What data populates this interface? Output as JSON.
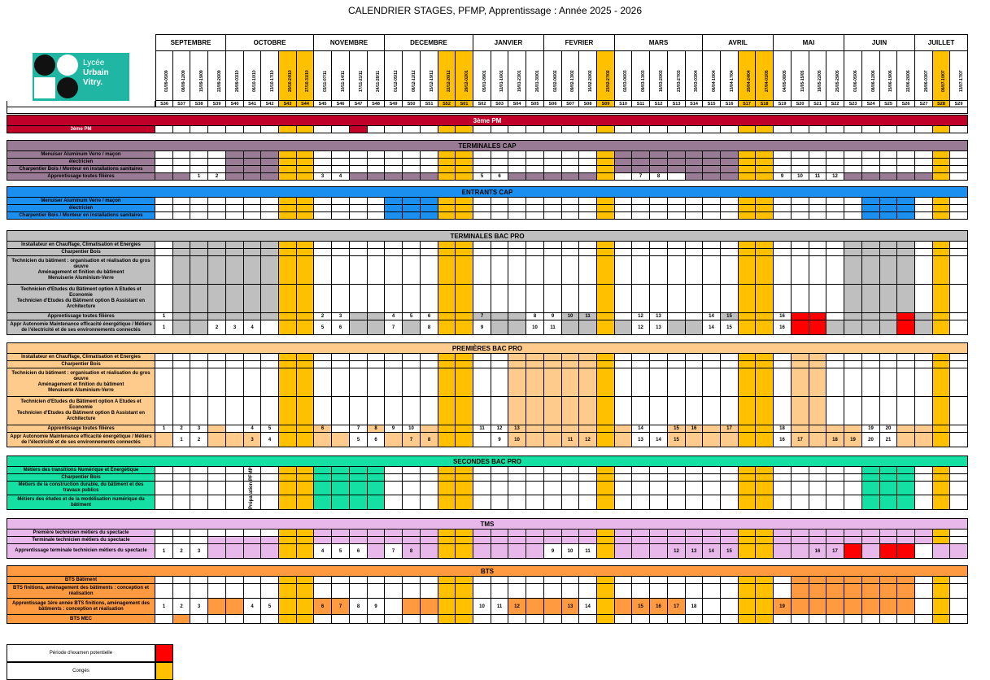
{
  "title": "CALENDRIER STAGES, PFMP, Apprentissage : Année 2025 - 2026",
  "logo": {
    "line1": "Lycée",
    "line2": "Urbain",
    "line3": "Vitry."
  },
  "months": [
    {
      "label": "SEPTEMBRE",
      "span": 4
    },
    {
      "label": "OCTOBRE",
      "span": 5
    },
    {
      "label": "NOVEMBRE",
      "span": 4
    },
    {
      "label": "DECEMBRE",
      "span": 5
    },
    {
      "label": "JANVIER",
      "span": 4
    },
    {
      "label": "FEVRIER",
      "span": 4
    },
    {
      "label": "MARS",
      "span": 5
    },
    {
      "label": "AVRIL",
      "span": 4
    },
    {
      "label": "MAI",
      "span": 4
    },
    {
      "label": "JUIN",
      "span": 4
    },
    {
      "label": "JUILLET",
      "span": 3
    }
  ],
  "weeks": [
    "S36",
    "S37",
    "S38",
    "S39",
    "S40",
    "S41",
    "S42",
    "S43",
    "S44",
    "S45",
    "S46",
    "S47",
    "S48",
    "S49",
    "S50",
    "S51",
    "S52",
    "S01",
    "S02",
    "S03",
    "S04",
    "S05",
    "S06",
    "S07",
    "S08",
    "S09",
    "S10",
    "S11",
    "S12",
    "S13",
    "S14",
    "S15",
    "S16",
    "S17",
    "S18",
    "S19",
    "S20",
    "S21",
    "S22",
    "S23",
    "S24",
    "S25",
    "S26",
    "S27",
    "S28",
    "S29"
  ],
  "dates": [
    "01/09-05/09",
    "08/09-12/09",
    "15/09-19/09",
    "22/09-26/09",
    "29/09-03/10",
    "06/10-10/10",
    "13/10-17/10",
    "20/10-24/10",
    "27/10-31/10",
    "03/11-07/11",
    "10/11-14/11",
    "17/11-21/11",
    "24/11-28/11",
    "01/12-05/12",
    "08/12-12/12",
    "15/12-19/12",
    "22/12-26/12",
    "29/12-02/01",
    "05/01-09/01",
    "12/01-16/01",
    "19/01-23/01",
    "26/01-30/01",
    "02/02-06/02",
    "09/02-13/02",
    "16/02-20/02",
    "23/02-27/02",
    "02/03-06/03",
    "09/03-13/03",
    "16/03-20/03",
    "23/03-27/03",
    "30/03-03/04",
    "06/04-10/04",
    "13/04-17/04",
    "20/04-24/04",
    "27/04-01/05",
    "04/05-08/05",
    "11/05-15/05",
    "18/05-22/05",
    "25/05-29/05",
    "01/06-05/06",
    "08/06-12/06",
    "15/06-19/06",
    "22/06-26/06",
    "29/06-03/07",
    "06/07-10/07",
    "13/07-17/07"
  ],
  "colors": {
    "vacation": "#ffc000",
    "exam": "#ff0000",
    "red_pm": "#c00028",
    "cap": "#9a7b96",
    "entrants": "#1a8ff0",
    "terminales": "#58d2f7",
    "premieres": "#ffcb8c",
    "secondes": "#14e0a4",
    "tms": "#e0a1e2",
    "tms_head": "#e8b8ea",
    "bts": "#ff9a40",
    "grey_head": "#bfbfbf"
  },
  "sections": [
    {
      "title": "3ème PM",
      "color": "#c00028",
      "rows": [
        {
          "label": "3ème PM",
          "h": 9,
          "fill": [],
          "nums": {},
          "red": [
            11
          ]
        }
      ]
    },
    {
      "title": "TERMINALES CAP",
      "color": "#9a7b96",
      "rows": [
        {
          "label": "Menuiser Aluminum Verre / maçon",
          "h": 9,
          "fill": [
            4,
            5,
            6,
            26,
            27,
            28,
            29,
            30,
            31,
            32
          ],
          "nums": {}
        },
        {
          "label": "électricien",
          "h": 9,
          "fill": [
            4,
            5,
            6,
            26,
            27,
            28,
            29,
            30,
            31,
            32
          ],
          "nums": {}
        },
        {
          "label": "Charpentier Bois / Monteur en installations sanitaires",
          "h": 9,
          "fill": [
            4,
            5,
            6,
            26,
            27,
            28,
            29,
            30,
            31,
            32
          ],
          "nums": {}
        },
        {
          "label": "Apprentissage toutes filières",
          "h": 9,
          "fill": [
            0,
            1,
            4,
            5,
            6,
            11,
            12,
            13,
            14,
            15,
            20,
            21,
            22,
            23,
            24,
            25,
            30,
            31,
            32,
            39,
            40,
            41,
            42,
            43
          ],
          "nums": {
            "2": "1",
            "3": "2",
            "9": "3",
            "10": "4",
            "18": "5",
            "19": "6",
            "27": "7",
            "28": "8",
            "35": "9",
            "36": "10",
            "37": "11",
            "38": "12"
          }
        }
      ]
    },
    {
      "title": "ENTRANTS CAP",
      "color": "#1a8ff0",
      "rows": [
        {
          "label": "Menuiser Aluminum Verre / maçon",
          "h": 9,
          "fill": [
            13,
            14,
            15,
            40,
            41,
            42
          ],
          "nums": {}
        },
        {
          "label": "électricien",
          "h": 9,
          "fill": [
            13,
            14,
            15,
            40,
            41,
            42
          ],
          "nums": {}
        },
        {
          "label": "Charpentier Bois / Monteur en installations sanitaires",
          "h": 9,
          "fill": [
            13,
            14,
            15,
            40,
            41,
            42
          ],
          "nums": {}
        }
      ]
    },
    {
      "title": "TERMINALES BAC PRO",
      "color": "#bfbfbf",
      "rows": [
        {
          "label": "Installateur en Chauffage, Climatisation et Energies",
          "h": 9,
          "fill": [
            1,
            2,
            3,
            4,
            5,
            6,
            39,
            40,
            41,
            42
          ],
          "nums": {}
        },
        {
          "label": "Charpentier Bois",
          "h": 9,
          "fill": [
            1,
            2,
            3,
            4,
            5,
            6,
            39,
            40,
            41,
            42
          ],
          "nums": {}
        },
        {
          "label": "Technicien du bâtiment : organisation et réalisation du gros œuvre\nAménagement et finition du bâtiment\nMenuiserie Aluminium-Verre",
          "h": 35,
          "fill": [
            1,
            2,
            3,
            4,
            5,
            6,
            39,
            40,
            41,
            42
          ],
          "nums": {}
        },
        {
          "label": "Technicien d'Etudes du Bâtiment option A Etudes et Economie\nTechnicien d'Etudes du Bâtiment option B Assistant en Architecture",
          "h": 35,
          "fill": [
            1,
            2,
            3,
            4,
            5,
            6,
            39,
            40,
            41,
            42
          ],
          "nums": {}
        },
        {
          "label": "Apprentissage toutes filières",
          "h": 9,
          "fill": [
            1,
            2,
            3,
            4,
            5,
            6,
            11,
            12,
            17,
            18,
            19,
            20,
            23,
            24,
            25,
            32,
            33,
            34,
            39,
            40,
            41,
            43
          ],
          "nums": {
            "0": "1",
            "9": "2",
            "10": "3",
            "13": "4",
            "14": "5",
            "15": "6",
            "18": "7",
            "21": "8",
            "22": "9",
            "23": "10",
            "24": "11",
            "27": "12",
            "28": "13",
            "31": "14",
            "32": "15",
            "35": "16"
          },
          "red": [
            36,
            37,
            42
          ]
        },
        {
          "label": "Appr Autonomie Maintenance efficacité énergétique / Métiers de l'électricité et de ses environnements connectés",
          "h": 18,
          "fill": [
            1,
            2,
            7,
            8,
            11,
            12,
            14,
            16,
            17,
            19,
            20,
            23,
            24,
            25,
            26,
            29,
            30,
            34,
            38,
            39,
            40,
            41,
            43
          ],
          "nums": {
            "0": "1",
            "3": "2",
            "4": "3",
            "5": "4",
            "9": "5",
            "10": "6",
            "13": "7",
            "15": "8",
            "18": "9",
            "21": "10",
            "22": "11",
            "27": "12",
            "28": "13",
            "31": "14",
            "32": "15",
            "35": "16"
          },
          "red": [
            36,
            37,
            42
          ]
        }
      ]
    },
    {
      "title": "PREMIÈRES BAC PRO",
      "color": "#ffcb8c",
      "rows": [
        {
          "label": "Installateur en Chauffage, Climatisation et Energies",
          "h": 9,
          "fill": [
            20,
            21,
            22,
            23,
            24,
            36,
            37
          ],
          "nums": {}
        },
        {
          "label": "Charpentier Bois",
          "h": 9,
          "fill": [
            20,
            21,
            22,
            23,
            24,
            36,
            37
          ],
          "nums": {}
        },
        {
          "label": "Technicien du bâtiment : organisation et réalisation du gros œuvre\nAménagement et finition du bâtiment\nMenuiserie Aluminium-Verre",
          "h": 35,
          "fill": [
            20,
            21,
            22,
            23,
            24,
            36,
            37
          ],
          "nums": {}
        },
        {
          "label": "Technicien d'Etudes du Bâtiment option A Etudes et Economie\nTechnicien d'Etudes du Bâtiment option B Assistant en Architecture",
          "h": 35,
          "fill": [
            20,
            21,
            22,
            23,
            24,
            36,
            37
          ],
          "nums": {}
        },
        {
          "label": "Apprentissage toutes filières",
          "h": 9,
          "fill": [
            3,
            8,
            9,
            12,
            15,
            16,
            20,
            21,
            22,
            23,
            24,
            25,
            26,
            29,
            30,
            31,
            32,
            33,
            34,
            36,
            37,
            38,
            39,
            42,
            43
          ],
          "nums": {
            "0": "1",
            "1": "2",
            "2": "3",
            "5": "4",
            "6": "5",
            "9": "6",
            "11": "7",
            "12": "8",
            "13": "9",
            "14": "10",
            "18": "11",
            "19": "12",
            "20": "13",
            "27": "14",
            "29": "15",
            "30": "16",
            "32": "17",
            "35": "18",
            "40": "19",
            "41": "20"
          }
        },
        {
          "label": "Appr Autonomie Maintenance efficacité énergétique / Métiers de l'électricité et de ses environnements connectés",
          "h": 18,
          "fill": [
            0,
            3,
            4,
            5,
            8,
            9,
            10,
            13,
            14,
            15,
            16,
            17,
            20,
            21,
            22,
            23,
            24,
            25,
            26,
            29,
            30,
            31,
            32,
            33,
            34,
            36,
            37,
            38,
            39,
            42,
            43
          ],
          "nums": {
            "1": "1",
            "2": "2",
            "5": "3",
            "6": "4",
            "11": "5",
            "12": "6",
            "14": "7",
            "15": "8",
            "19": "9",
            "20": "10",
            "23": "11",
            "24": "12",
            "27": "13",
            "28": "14",
            "29": "15",
            "35": "16",
            "36": "17",
            "38": "18",
            "39": "19",
            "40": "20",
            "41": "21"
          }
        }
      ]
    },
    {
      "title": "SECONDES BAC PRO",
      "color": "#14e0a4",
      "rows": [
        {
          "label": "Métiers des transitions Numérique et Énergétique",
          "h": 9,
          "fill": [
            9,
            10,
            11,
            12,
            40,
            41,
            42
          ],
          "nums": {}
        },
        {
          "label": "Charpentier Bois",
          "h": 9,
          "fill": [
            9,
            10,
            11,
            12,
            40,
            41,
            42
          ],
          "nums": {}
        },
        {
          "label": "Métiers de la construction durable, du bâtiment et des travaux publics",
          "h": 17,
          "fill": [
            9,
            10,
            11,
            12,
            40,
            41,
            42
          ],
          "nums": {}
        },
        {
          "label": "Métiers des études et de la modélisation numérique du bâtiment",
          "h": 18,
          "fill": [
            9,
            10,
            11,
            12,
            40,
            41,
            42
          ],
          "nums": {}
        }
      ]
    },
    {
      "title": "TMS",
      "color": "#e8b8ea",
      "rows": [
        {
          "label": "Première technicien métiers du spectacle",
          "h": 9,
          "fill": [
            9,
            10,
            11,
            12,
            13,
            14,
            15,
            16,
            17,
            18,
            19,
            20,
            21,
            22,
            23,
            24,
            25,
            26,
            27,
            28,
            29,
            30,
            31,
            32,
            33,
            34,
            35,
            36,
            37,
            38,
            39,
            40,
            41,
            42,
            43
          ],
          "nums": {}
        },
        {
          "label": "Terminale technicien métiers du spectacle",
          "h": 9,
          "fill": [
            3,
            4,
            5,
            6,
            7,
            8,
            9,
            10,
            11,
            12,
            13,
            14,
            15,
            16,
            17,
            18,
            19,
            20,
            21,
            22,
            23,
            24,
            25,
            26,
            27,
            28,
            29,
            30,
            31,
            32,
            33,
            34,
            35,
            36,
            37,
            38,
            39,
            40,
            41,
            42,
            43
          ],
          "nums": {}
        },
        {
          "label": "Apprentissage terminale technicien métiers du spectacle",
          "h": 18,
          "fill": [
            3,
            4,
            5,
            6,
            7,
            8,
            12,
            14,
            15,
            18,
            19,
            20,
            21,
            25,
            26,
            27,
            28,
            29,
            30,
            31,
            32,
            33,
            34,
            35,
            36,
            37,
            38,
            40,
            44,
            45
          ],
          "nums": {
            "0": "1",
            "1": "2",
            "2": "3",
            "9": "4",
            "10": "5",
            "11": "6",
            "13": "7",
            "14": "8",
            "22": "9",
            "23": "10",
            "24": "11",
            "29": "12",
            "30": "13",
            "31": "14",
            "32": "15",
            "37": "16",
            "38": "17"
          },
          "red": [
            39,
            41,
            42
          ]
        }
      ]
    },
    {
      "title": "BTS",
      "color": "#ff9a40",
      "rows": [
        {
          "label": "BTS Bâtiment",
          "h": 9,
          "fill": [
            36,
            37,
            38,
            39,
            40,
            41,
            42
          ],
          "nums": {}
        },
        {
          "label": "BTS finitions, aménagement des bâtiments : conception et réalisation",
          "h": 18,
          "fill": [
            36,
            37,
            38,
            39,
            40,
            41,
            42
          ],
          "nums": {}
        },
        {
          "label": "Apprentissage 1ère année BTS finitions, aménagement des bâtiments : conception et réalisation",
          "h": 20,
          "fill": [
            3,
            4,
            9,
            10,
            14,
            15,
            16,
            17,
            20,
            21,
            22,
            23,
            26,
            27,
            28,
            29,
            34,
            35,
            36,
            37,
            38,
            39,
            40,
            41,
            42
          ],
          "nums": {
            "0": "1",
            "1": "2",
            "2": "3",
            "5": "4",
            "6": "5",
            "9": "6",
            "10": "7",
            "11": "8",
            "12": "9",
            "18": "10",
            "19": "11",
            "20": "12",
            "23": "13",
            "24": "14",
            "27": "15",
            "28": "16",
            "29": "17",
            "30": "18",
            "35": "19"
          }
        },
        {
          "label": "BTS MEC",
          "h": 11,
          "fill": [
            1,
            44
          ],
          "nums": {}
        }
      ]
    }
  ],
  "vacation_weeks": [
    7,
    8,
    16,
    17,
    25,
    33,
    34,
    44
  ],
  "pfmp_note": "Préparation PFMP",
  "legend": [
    {
      "label": "Période d'examen potentielle",
      "color": "#ff0000"
    },
    {
      "label": "Congés",
      "color": "#ffc000"
    }
  ]
}
